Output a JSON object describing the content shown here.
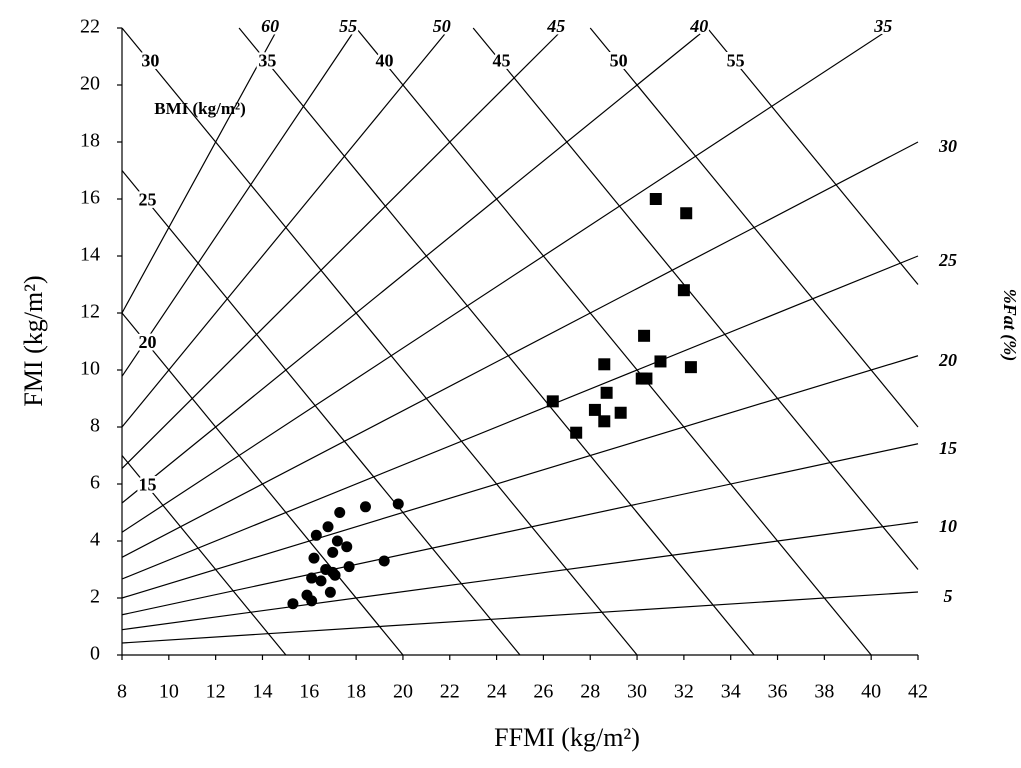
{
  "chart_data": {
    "type": "scatter",
    "x_label": "FFMI (kg/m²)",
    "y_label": "FMI (kg/m²)",
    "right_label": "%Fat (%)",
    "bmi_label": "BMI (kg/m²)",
    "xlim": [
      8,
      42
    ],
    "ylim": [
      0,
      22
    ],
    "xticks": [
      8,
      10,
      12,
      14,
      16,
      18,
      20,
      22,
      24,
      26,
      28,
      30,
      32,
      34,
      36,
      38,
      40,
      42
    ],
    "yticks": [
      0,
      2,
      4,
      6,
      8,
      10,
      12,
      14,
      16,
      18,
      20,
      22
    ],
    "bmi_isolines": [
      15,
      20,
      25,
      30,
      35,
      40,
      45,
      50,
      55
    ],
    "fat_isolines": [
      5,
      10,
      15,
      20,
      25,
      30,
      35,
      40,
      45,
      50,
      55,
      60
    ],
    "series": [
      {
        "color": "#000000",
        "marker": "circle",
        "x": [
          15.3,
          15.9,
          16.1,
          16.1,
          16.5,
          16.2,
          16.3,
          16.8,
          16.7,
          17.0,
          16.9,
          17.0,
          17.1,
          17.2,
          17.3,
          17.6,
          17.7,
          18.4,
          19.2,
          19.8
        ],
        "values": [
          1.8,
          2.1,
          1.9,
          2.7,
          2.6,
          3.4,
          4.2,
          4.5,
          3.0,
          3.6,
          2.2,
          2.9,
          2.8,
          4.0,
          5.0,
          3.8,
          3.1,
          5.2,
          3.3,
          5.3
        ]
      },
      {
        "color": "#000000",
        "marker": "square",
        "x": [
          30.8,
          32.1,
          32.0,
          30.3,
          28.6,
          31.0,
          32.3,
          30.2,
          30.4,
          28.7,
          26.4,
          28.2,
          29.3,
          28.6,
          27.4
        ],
        "values": [
          16.0,
          15.5,
          12.8,
          11.2,
          10.2,
          10.3,
          10.1,
          9.7,
          9.7,
          9.2,
          8.9,
          8.6,
          8.5,
          8.2,
          7.8
        ]
      }
    ]
  }
}
